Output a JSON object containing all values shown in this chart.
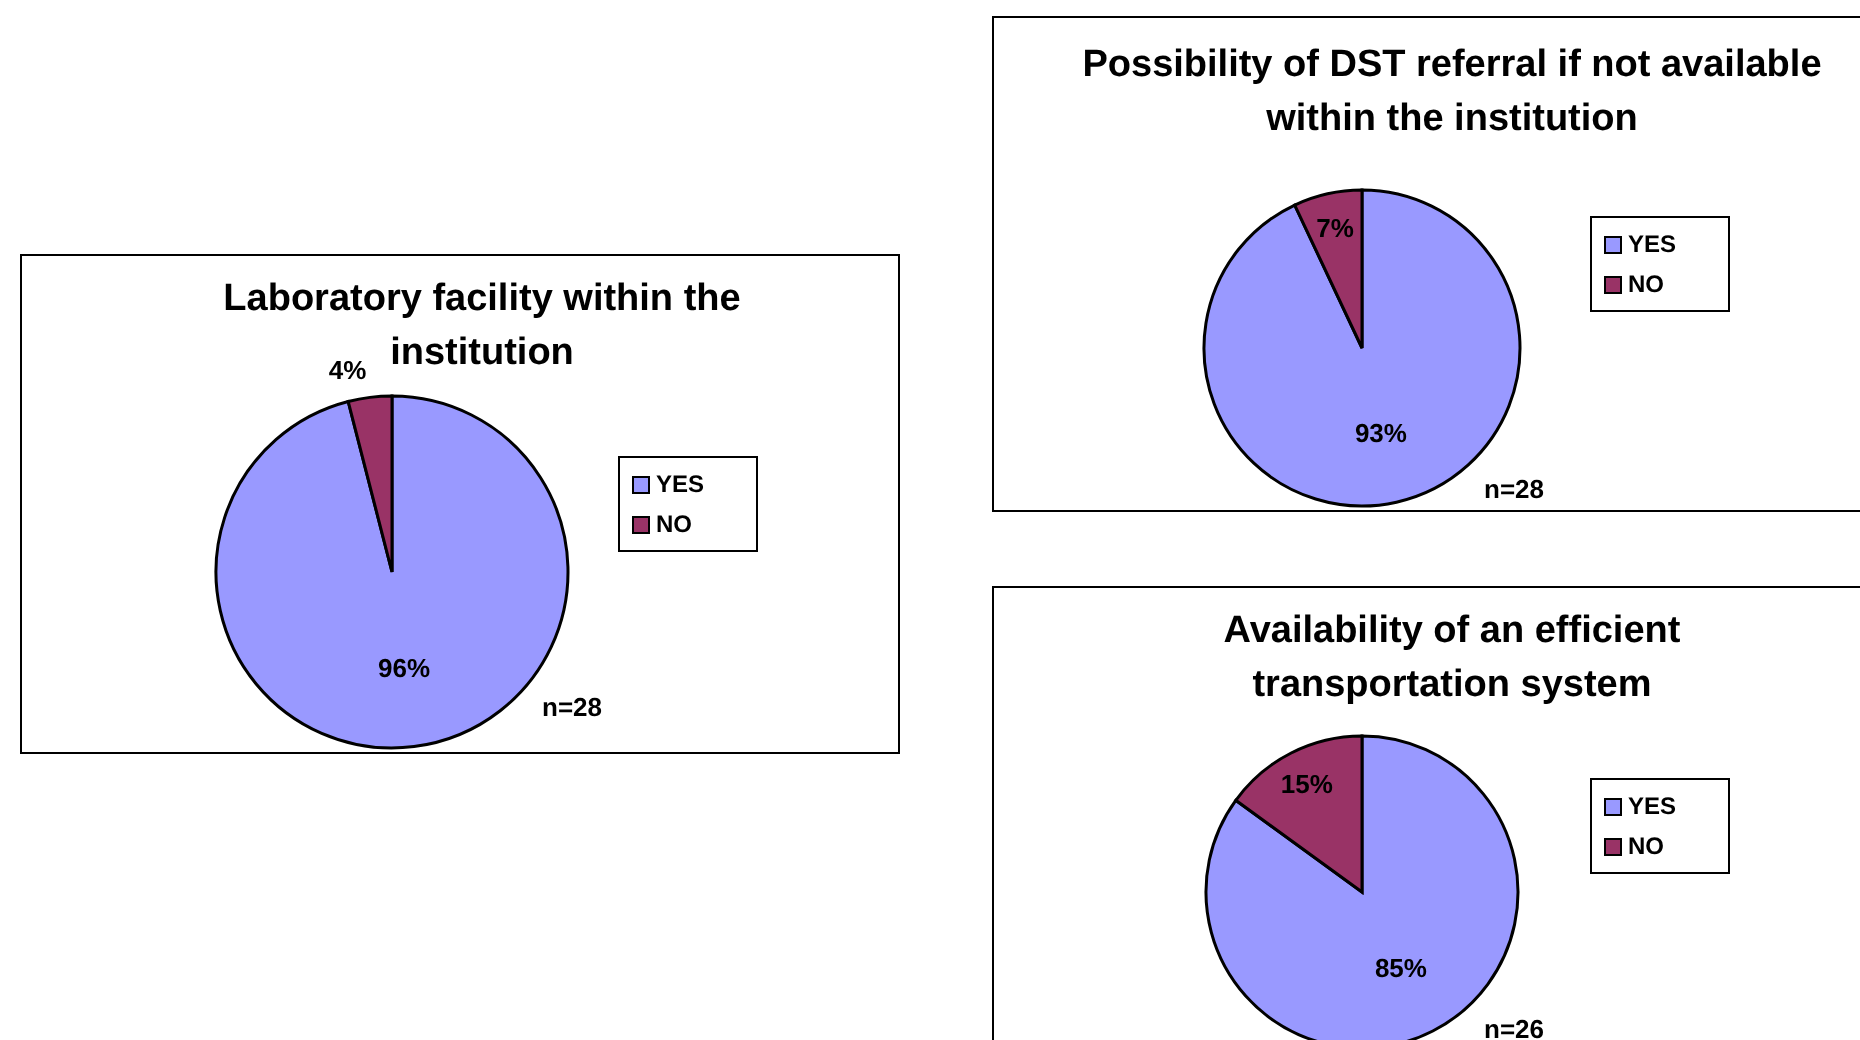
{
  "chart_data": [
    {
      "type": "pie",
      "title": "Laboratory facility within the institution",
      "categories": [
        "YES",
        "NO"
      ],
      "values": [
        96,
        4
      ],
      "colors": [
        "#9999ff",
        "#993366"
      ],
      "value_labels": [
        "96%",
        "4%"
      ],
      "legend": "right",
      "annotations": [
        "n=28"
      ]
    },
    {
      "type": "pie",
      "title": "Possibility of DST referral if not available within the institution",
      "categories": [
        "YES",
        "NO"
      ],
      "values": [
        93,
        7
      ],
      "colors": [
        "#9999ff",
        "#993366"
      ],
      "value_labels": [
        "93%",
        "7%"
      ],
      "legend": "right",
      "annotations": [
        "n=28"
      ]
    },
    {
      "type": "pie",
      "title": "Availability of an efficient transportation system",
      "categories": [
        "YES",
        "NO"
      ],
      "values": [
        85,
        15
      ],
      "colors": [
        "#9999ff",
        "#993366"
      ],
      "value_labels": [
        "85%",
        "15%"
      ],
      "legend": "right",
      "annotations": [
        "n=26"
      ]
    }
  ]
}
